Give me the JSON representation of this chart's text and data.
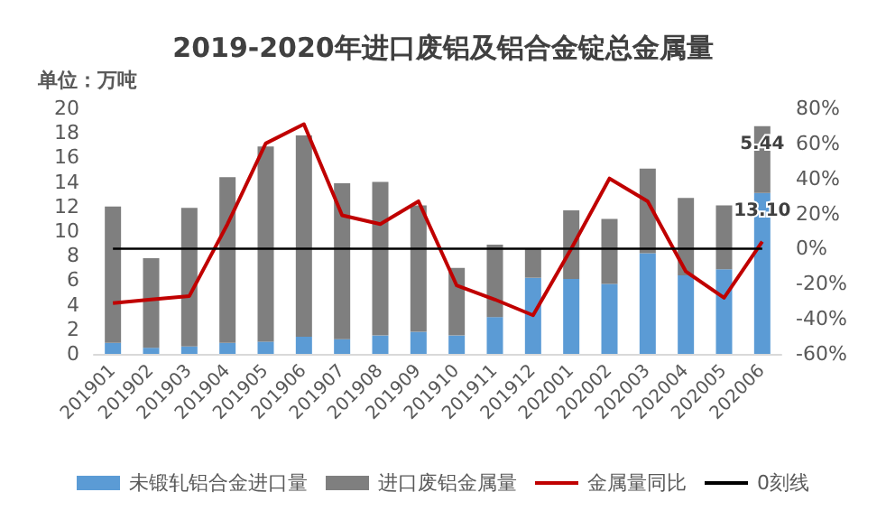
{
  "chart_data": {
    "type": "bar",
    "title": "2019-2020年进口废铝及铝合金锭总金属量",
    "ylabel": "单位：万吨",
    "stacked": true,
    "categories": [
      "201901",
      "201902",
      "201903",
      "201904",
      "201905",
      "201906",
      "201907",
      "201908",
      "201909",
      "201910",
      "201911",
      "201912",
      "202001",
      "202002",
      "202003",
      "202004",
      "202005",
      "202006"
    ],
    "series": [
      {
        "name": "未锻轧铝合金进口量",
        "color": "#5b9bd5",
        "values": [
          0.9,
          0.5,
          0.6,
          0.9,
          1.0,
          1.4,
          1.2,
          1.5,
          1.8,
          1.5,
          3.0,
          6.2,
          6.1,
          5.7,
          8.2,
          6.4,
          6.9,
          13.1
        ],
        "value_labels": [
          null,
          null,
          null,
          null,
          null,
          null,
          null,
          null,
          null,
          null,
          null,
          null,
          null,
          null,
          null,
          null,
          null,
          "13.10"
        ]
      },
      {
        "name": "进口废铝金属量",
        "color": "#7f7f7f",
        "values": [
          11.1,
          7.3,
          11.3,
          13.5,
          15.9,
          16.4,
          12.7,
          12.5,
          10.3,
          5.5,
          5.9,
          2.4,
          5.6,
          5.3,
          6.9,
          6.3,
          5.2,
          5.44
        ],
        "value_labels": [
          null,
          null,
          null,
          null,
          null,
          null,
          null,
          null,
          null,
          null,
          null,
          null,
          null,
          null,
          null,
          null,
          null,
          "5.44"
        ]
      },
      {
        "name": "金属量同比",
        "type": "line",
        "axis": "y2",
        "color": "#c00000",
        "values": [
          -31,
          -29,
          -27,
          14,
          60,
          71,
          19,
          14,
          27,
          -21,
          -29,
          -38,
          0,
          40,
          27,
          -13,
          -28,
          4
        ]
      },
      {
        "name": "0刻线",
        "type": "line",
        "axis": "y2",
        "color": "#000000",
        "values": [
          0,
          0,
          0,
          0,
          0,
          0,
          0,
          0,
          0,
          0,
          0,
          0,
          0,
          0,
          0,
          0,
          0,
          0
        ]
      }
    ],
    "ylim": [
      0,
      20
    ],
    "yticks": [
      0,
      2,
      4,
      6,
      8,
      10,
      12,
      14,
      16,
      18,
      20
    ],
    "y2lim": [
      -60,
      80
    ],
    "y2ticks": [
      {
        "value": -60,
        "label": "-60%"
      },
      {
        "value": -40,
        "label": "-40%"
      },
      {
        "value": -20,
        "label": "-20%"
      },
      {
        "value": 0,
        "label": "0%"
      },
      {
        "value": 20,
        "label": "20%"
      },
      {
        "value": 40,
        "label": "40%"
      },
      {
        "value": 60,
        "label": "60%"
      },
      {
        "value": 80,
        "label": "80%"
      }
    ],
    "grid": false,
    "legend": "bottom",
    "marker": "none",
    "line_style": "solid"
  }
}
